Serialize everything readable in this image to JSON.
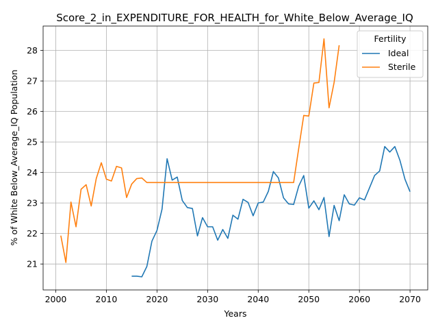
{
  "chart_data": {
    "type": "line",
    "title": "Score_2_in_EXPENDITURE_FOR_HEALTH_for_White_Below_Average_IQ",
    "xlabel": "Years",
    "ylabel": "% of White Below_Average_IQ Population",
    "xlim": [
      1997.5,
      2073.5
    ],
    "ylim": [
      20.15,
      28.8
    ],
    "xticks": [
      2000,
      2010,
      2020,
      2030,
      2040,
      2050,
      2060,
      2070
    ],
    "yticks": [
      21,
      22,
      23,
      24,
      25,
      26,
      27,
      28
    ],
    "grid": true,
    "legend": {
      "title": "Fertility",
      "position": "top-right"
    },
    "series": [
      {
        "name": "Ideal",
        "color": "#1f77b4",
        "x": [
          2015,
          2016,
          2017,
          2018,
          2019,
          2020,
          2021,
          2022,
          2023,
          2024,
          2025,
          2026,
          2027,
          2028,
          2029,
          2030,
          2031,
          2032,
          2033,
          2034,
          2035,
          2036,
          2037,
          2038,
          2039,
          2040,
          2041,
          2042,
          2043,
          2044,
          2045,
          2046,
          2047,
          2048,
          2049,
          2050,
          2051,
          2052,
          2053,
          2054,
          2055,
          2056,
          2057,
          2058,
          2059,
          2060,
          2061,
          2062,
          2063,
          2064,
          2065,
          2066,
          2067,
          2068,
          2069,
          2070
        ],
        "y": [
          20.6,
          20.6,
          20.58,
          20.92,
          21.75,
          22.1,
          22.8,
          24.45,
          23.75,
          23.85,
          23.08,
          22.85,
          22.82,
          21.92,
          22.52,
          22.22,
          22.22,
          21.78,
          22.13,
          21.84,
          22.6,
          22.47,
          23.12,
          23.02,
          22.58,
          23.0,
          23.03,
          23.38,
          24.03,
          23.82,
          23.17,
          22.97,
          22.95,
          23.55,
          23.9,
          22.83,
          23.07,
          22.78,
          23.18,
          21.9,
          22.92,
          22.42,
          23.27,
          22.97,
          22.93,
          23.17,
          23.1,
          23.5,
          23.9,
          24.05,
          24.85,
          24.67,
          24.85,
          24.4,
          23.78,
          23.37
        ]
      },
      {
        "name": "Sterile",
        "color": "#ff7f0e",
        "x": [
          2001,
          2002,
          2003,
          2004,
          2005,
          2006,
          2007,
          2008,
          2009,
          2010,
          2011,
          2012,
          2013,
          2014,
          2015,
          2016,
          2017,
          2018,
          2019,
          2020,
          2021,
          2022,
          2023,
          2024,
          2025,
          2026,
          2027,
          2028,
          2029,
          2030,
          2031,
          2032,
          2033,
          2034,
          2035,
          2036,
          2037,
          2038,
          2039,
          2040,
          2041,
          2042,
          2043,
          2044,
          2045,
          2046,
          2047,
          2048,
          2049,
          2050,
          2051,
          2052,
          2053,
          2054,
          2055,
          2056
        ],
        "y": [
          21.93,
          21.05,
          23.03,
          22.22,
          23.45,
          23.6,
          22.9,
          23.8,
          24.32,
          23.78,
          23.72,
          24.2,
          24.15,
          23.18,
          23.62,
          23.8,
          23.82,
          23.67,
          23.67,
          23.67,
          23.67,
          23.67,
          23.67,
          23.67,
          23.67,
          23.67,
          23.67,
          23.67,
          23.67,
          23.67,
          23.67,
          23.67,
          23.67,
          23.67,
          23.67,
          23.67,
          23.67,
          23.67,
          23.67,
          23.67,
          23.67,
          23.67,
          23.67,
          23.67,
          23.67,
          23.67,
          23.67,
          24.78,
          25.87,
          25.85,
          26.93,
          26.95,
          28.38,
          26.12,
          26.95,
          28.17
        ]
      }
    ]
  }
}
